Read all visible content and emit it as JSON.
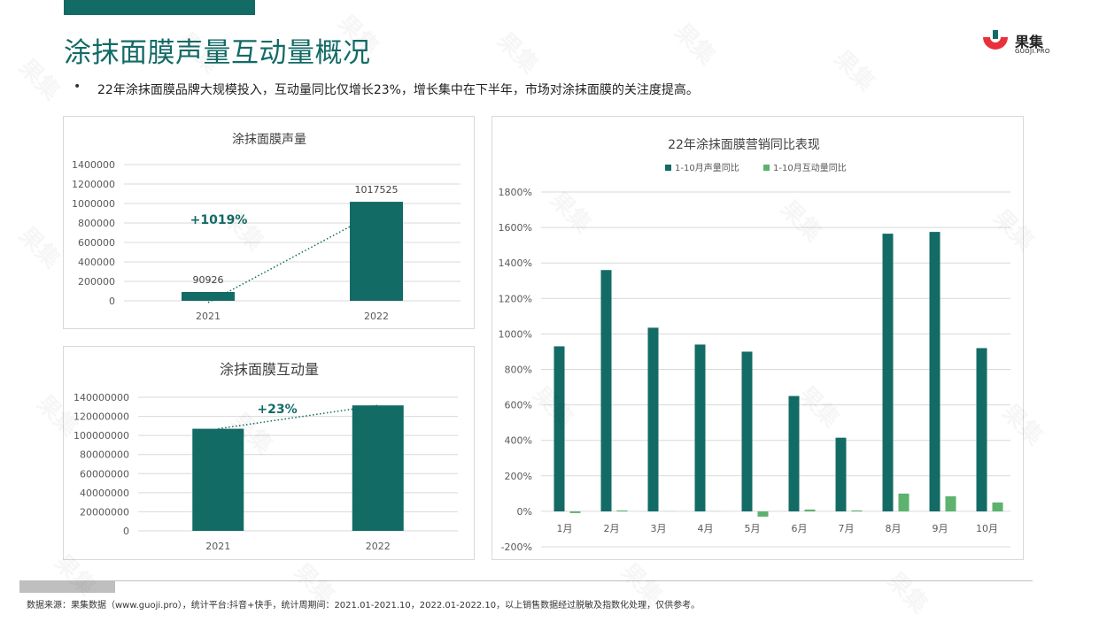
{
  "page": {
    "title": "涂抹面膜声量互动量概况",
    "bullet": "•",
    "summary": "22年涂抹面膜品牌大规模投入，互动量同比仅增长23%，增长集中在下半年，市场对涂抹面膜的关注度提高。",
    "footer": "数据来源：果集数据（www.guoji.pro），统计平台:抖音+快手，统计周期间：2021.01-2021.10，2022.01-2022.10，以上销售数据经过脱敏及指数化处理，仅供参考。"
  },
  "logo": {
    "name": "果集",
    "sub": "GUOJI.PRO"
  },
  "watermark": {
    "text": "果集"
  },
  "colors": {
    "dark_teal": "#136b66",
    "light_green": "#5db26e",
    "trend_dot": "#0f6b60",
    "accent_red": "#e8313a",
    "grid": "#d9d9d9",
    "axis_text": "#595959"
  },
  "chart_data": [
    {
      "type": "bar",
      "title": "涂抹面膜声量",
      "categories": [
        "2021",
        "2022"
      ],
      "values": [
        90926,
        1017525
      ],
      "data_labels": [
        "90926",
        "1017525"
      ],
      "ylim": [
        0,
        1400000
      ],
      "yticks": [
        0,
        200000,
        400000,
        600000,
        800000,
        1000000,
        1200000,
        1400000
      ],
      "ytick_labels": [
        "0",
        "200000",
        "400000",
        "600000",
        "800000",
        "1000000",
        "1200000",
        "1400000"
      ],
      "annotation": "+1019%",
      "grid": true,
      "trend_line": "dotted"
    },
    {
      "type": "bar",
      "title": "涂抹面膜互动量",
      "categories": [
        "2021",
        "2022"
      ],
      "values": [
        107000000,
        131500000
      ],
      "ylim": [
        0,
        140000000
      ],
      "yticks": [
        0,
        20000000,
        40000000,
        60000000,
        80000000,
        100000000,
        120000000,
        140000000
      ],
      "ytick_labels": [
        "0",
        "20000000",
        "40000000",
        "60000000",
        "80000000",
        "100000000",
        "120000000",
        "140000000"
      ],
      "annotation": "+23%",
      "grid": true,
      "trend_line": "dotted"
    },
    {
      "type": "bar",
      "title": "22年涂抹面膜营销同比表现",
      "categories": [
        "1月",
        "2月",
        "3月",
        "4月",
        "5月",
        "6月",
        "7月",
        "8月",
        "9月",
        "10月"
      ],
      "series": [
        {
          "name": "1-10月声量同比",
          "values": [
            930,
            1360,
            1035,
            940,
            900,
            650,
            415,
            1565,
            1575,
            920
          ]
        },
        {
          "name": "1-10月互动量同比",
          "values": [
            -10,
            5,
            0,
            0,
            -30,
            10,
            5,
            100,
            85,
            50
          ]
        }
      ],
      "ylim": [
        -200,
        1800
      ],
      "yticks": [
        -200,
        0,
        200,
        400,
        600,
        800,
        1000,
        1200,
        1400,
        1600,
        1800
      ],
      "ytick_labels": [
        "-200%",
        "0%",
        "200%",
        "400%",
        "600%",
        "800%",
        "1000%",
        "1200%",
        "1400%",
        "1600%",
        "1800%"
      ],
      "legend": "top",
      "grid": true
    }
  ]
}
